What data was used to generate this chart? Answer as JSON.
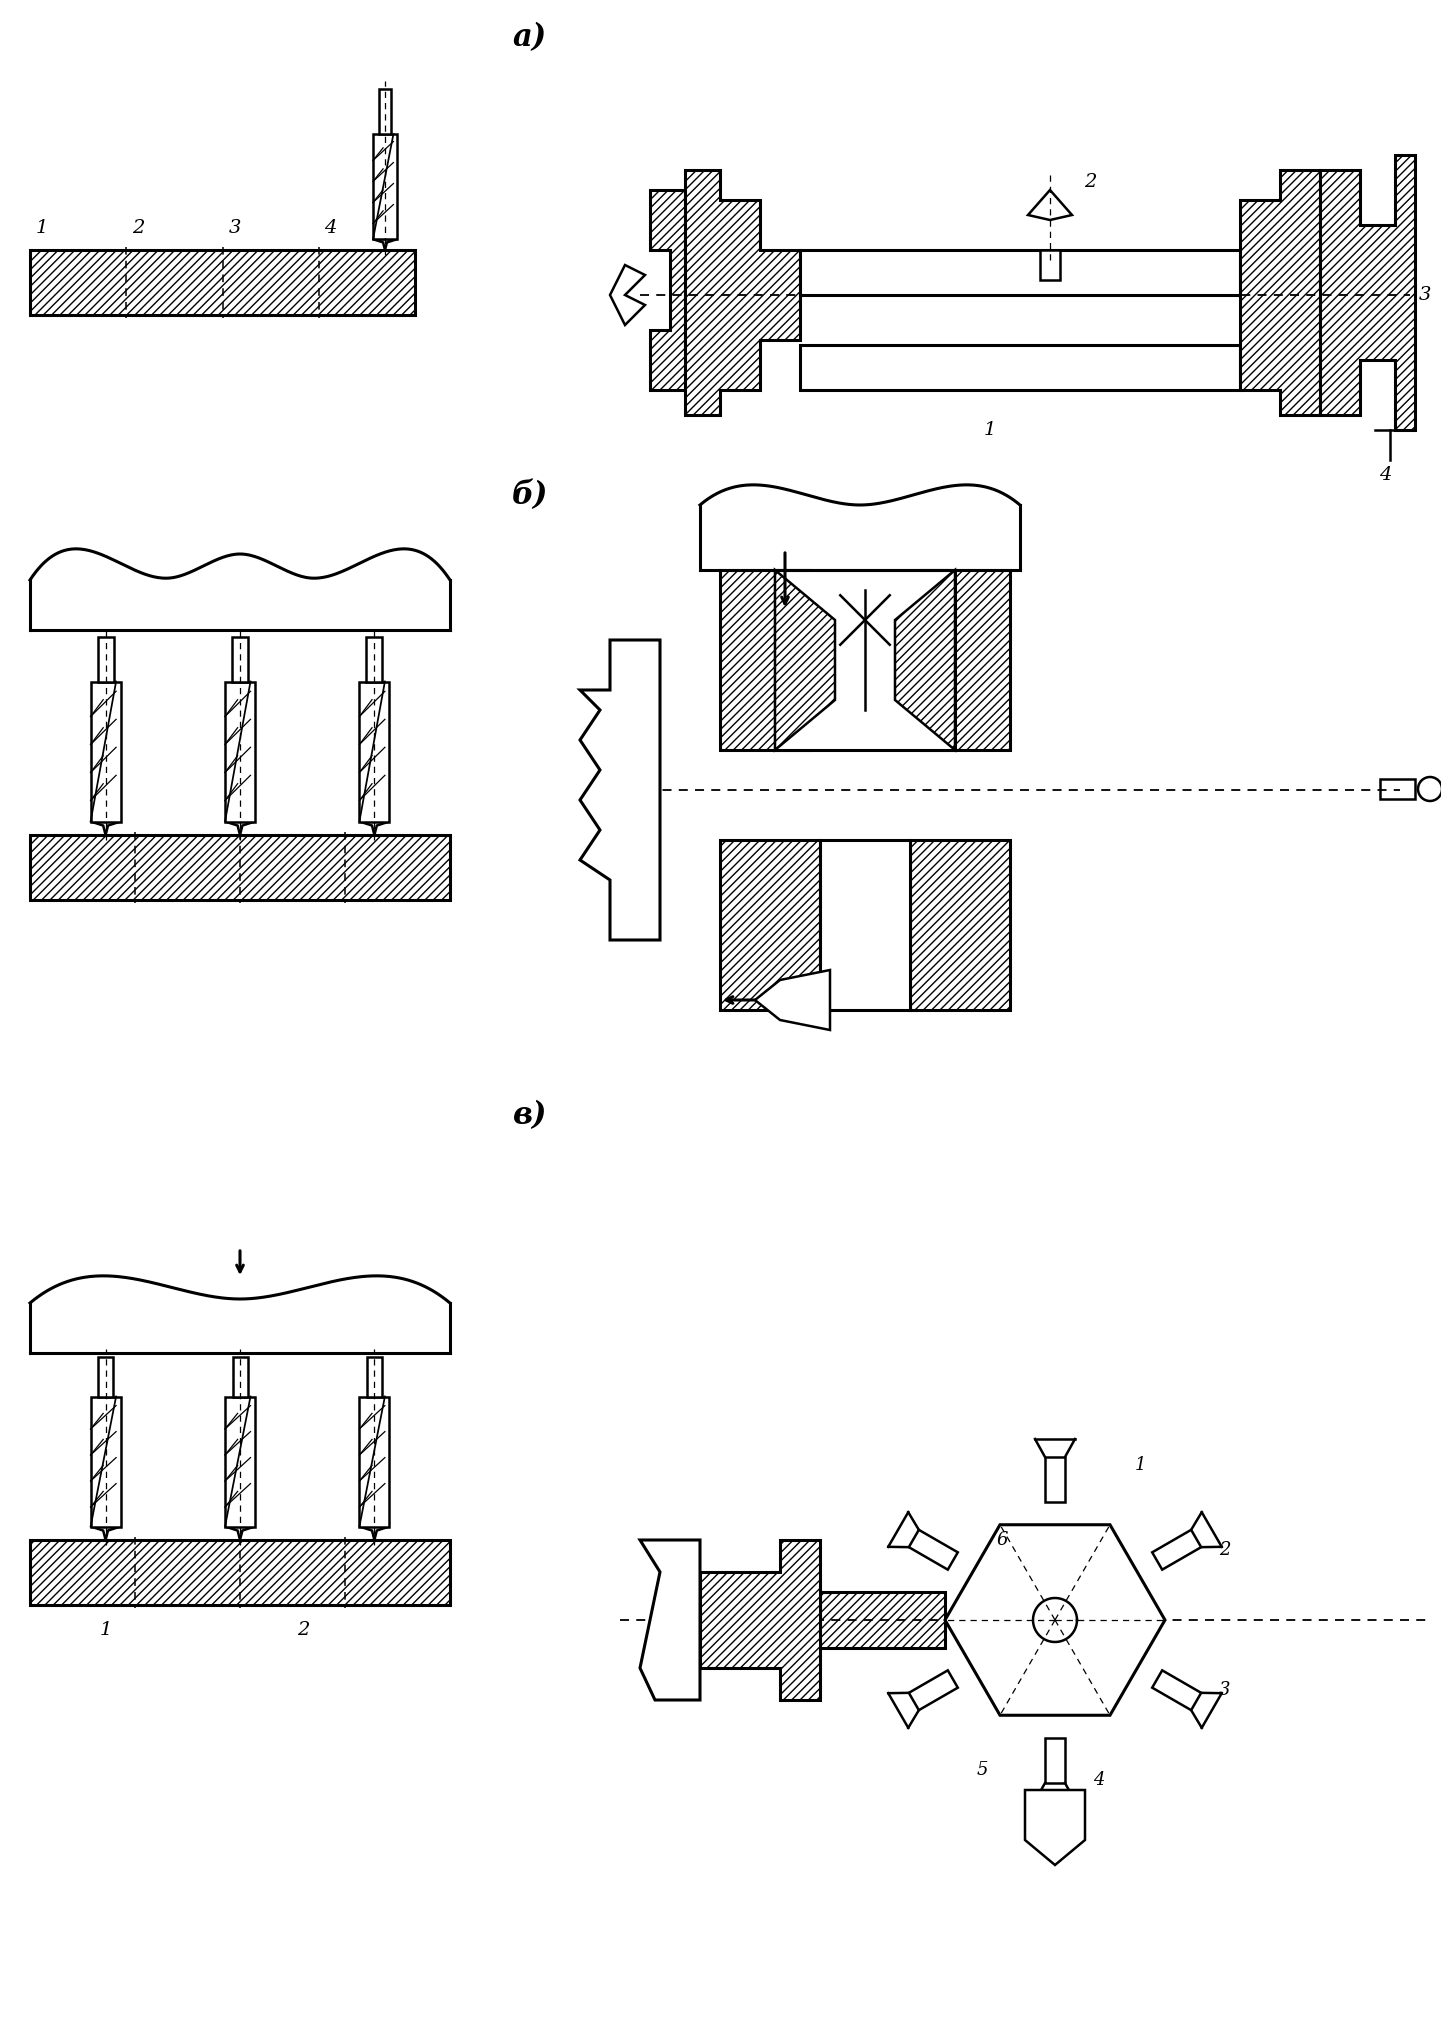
{
  "title_a": "а)",
  "title_b": "б)",
  "title_c": "в)",
  "bg_color": "#ffffff",
  "fig_width": 14.41,
  "fig_height": 20.17,
  "dpi": 100
}
